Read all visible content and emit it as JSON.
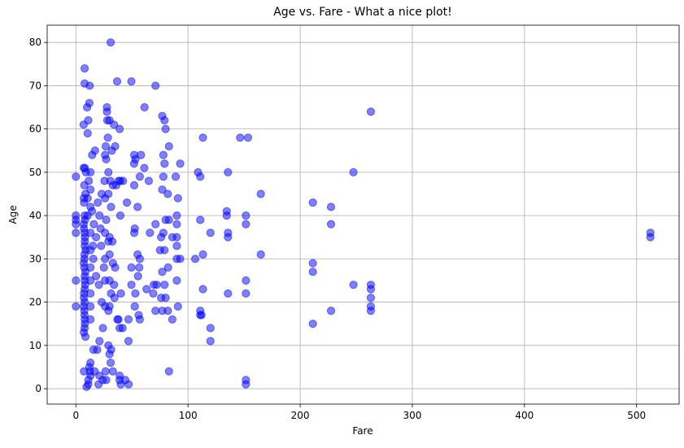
{
  "chart_data": {
    "type": "scatter",
    "title": "Age vs. Fare - What a nice plot!",
    "x_label": "Fare",
    "y_label": "Age",
    "color": "#0000ff",
    "alpha": 0.5,
    "grid": true,
    "xlim": [
      -25.6,
      537.9
    ],
    "ylim": [
      -3.56,
      83.98
    ],
    "xticks": [
      0,
      100,
      200,
      300,
      400,
      500
    ],
    "yticks": [
      0,
      10,
      20,
      30,
      40,
      50,
      60,
      70,
      80
    ],
    "x": [
      0,
      0,
      0,
      0,
      0,
      0,
      0,
      7.25,
      7.9,
      8.05,
      8.46,
      7.75,
      7.23,
      10.5,
      11,
      12,
      10,
      12.3,
      7.8,
      7.8,
      6.9,
      7,
      8,
      9,
      7.5,
      8.5,
      7.1,
      7.3,
      7.9,
      8.1,
      7,
      7.2,
      7.8,
      8,
      7.9,
      8.7,
      7.7,
      7.6,
      7.05,
      7.5,
      7.9,
      8.3,
      7.8,
      7.2,
      7.8,
      7,
      7.5,
      7.7,
      7.9,
      8,
      7.1,
      8.5,
      9.5,
      11,
      11.1,
      13,
      12.5,
      12,
      13,
      10.5,
      10.5,
      11.5,
      13,
      13,
      13,
      13,
      13,
      13,
      13,
      13,
      13,
      13,
      14.5,
      14.4,
      15.2,
      15.5,
      15.7,
      16,
      16.7,
      17,
      18,
      18,
      19,
      19.5,
      20.5,
      20.2,
      21,
      21,
      21,
      22,
      22.5,
      23,
      23,
      24,
      24.1,
      25,
      25.5,
      26,
      26,
      26,
      26,
      26,
      26,
      26.5,
      26.6,
      27,
      27,
      27,
      27.7,
      27.7,
      28,
      28.5,
      29,
      29,
      29,
      29,
      29,
      30,
      30,
      30,
      30,
      30,
      30,
      30.7,
      31,
      31,
      31.3,
      31.3,
      31.4,
      32,
      32.5,
      33,
      33,
      33,
      34,
      34,
      34.4,
      35,
      35,
      36.75,
      36,
      37,
      38,
      38,
      39,
      39.6,
      39.6,
      39,
      39,
      39,
      40,
      40.1,
      41.6,
      42,
      44,
      45.5,
      46.9,
      46.9,
      47,
      49.5,
      49.5,
      49.5,
      51.9,
      52,
      52,
      52,
      52.5,
      53,
      53,
      52.5,
      55,
      55,
      55.4,
      56,
      56.5,
      57,
      57,
      57,
      58,
      61,
      61.2,
      63,
      65,
      66,
      69,
      69.5,
      71,
      71,
      71,
      72,
      75,
      76,
      76,
      77,
      77,
      77,
      77,
      78,
      78,
      78,
      79,
      79,
      79,
      79,
      80,
      80,
      80,
      81.9,
      82,
      82.2,
      83,
      83,
      83,
      86,
      86,
      89,
      90,
      90,
      90,
      90,
      90,
      90,
      91,
      91,
      93,
      93,
      512.3,
      512.3,
      263,
      263,
      263,
      263,
      263,
      263,
      247.5,
      247.5,
      227.5,
      227.5,
      227.5,
      211.3,
      211.3,
      211.3,
      211.3,
      164.9,
      164.9,
      153.5,
      146.5,
      151.6,
      151.6,
      151.6,
      151.6,
      151.6,
      151.6,
      135.6,
      134.5,
      134.5,
      135.6,
      135.6,
      135.6,
      120,
      120,
      120,
      113.3,
      110.9,
      108.9,
      110.9,
      110.9,
      110.9,
      112,
      113.3,
      113.3,
      106.4
    ],
    "values": [
      36,
      38,
      39,
      40,
      49,
      25,
      19,
      22,
      26,
      35,
      27,
      14,
      4,
      59,
      62,
      66,
      65,
      70,
      74,
      70.5,
      61,
      51,
      51,
      50,
      47,
      45,
      44,
      43,
      40,
      39,
      38,
      37,
      36,
      34,
      33,
      32,
      31,
      30,
      29,
      28,
      25,
      24,
      23,
      21,
      20,
      19,
      18,
      17,
      16,
      15,
      13,
      12,
      0.42,
      1,
      2,
      3,
      4,
      5,
      6,
      40,
      44,
      48,
      50,
      46,
      42,
      36,
      32,
      28,
      25,
      22,
      19,
      16,
      54,
      41,
      33,
      30,
      9,
      38,
      4,
      55,
      35,
      26,
      9,
      43,
      24,
      1,
      40,
      11,
      3,
      37,
      33,
      45,
      20,
      2,
      14,
      28,
      48,
      54,
      44,
      36,
      30,
      25,
      19,
      4,
      56,
      53,
      39,
      2,
      65,
      64,
      62,
      58,
      50,
      45,
      34,
      18,
      10,
      62,
      35,
      31,
      25,
      19,
      8,
      48,
      80,
      6,
      42,
      22,
      9,
      55,
      34,
      47,
      29,
      4,
      61,
      24,
      21,
      56,
      28,
      71,
      47,
      16,
      48,
      16,
      60,
      48,
      40,
      14,
      3,
      2,
      1,
      22,
      14,
      48,
      2,
      43,
      16,
      11,
      1,
      71,
      28,
      24,
      52,
      54,
      47,
      36,
      37,
      53,
      22,
      19,
      42,
      31,
      26,
      17,
      28,
      30,
      16,
      49,
      54,
      51,
      65,
      23,
      48,
      36,
      22,
      24,
      18,
      38,
      70,
      24,
      32,
      21,
      35,
      18,
      27,
      46,
      63,
      36,
      49,
      54,
      24,
      32,
      52,
      62,
      21,
      39,
      60,
      45,
      18,
      28,
      4,
      39,
      56,
      16,
      35,
      49,
      25,
      30,
      33,
      35,
      38,
      40,
      19,
      44,
      52,
      30,
      35,
      36,
      64,
      24,
      23,
      21,
      19,
      18,
      50,
      24,
      42,
      38,
      18,
      43,
      29,
      27,
      15,
      45,
      31,
      58,
      58,
      40,
      38,
      25,
      22,
      2,
      1,
      50,
      41,
      40,
      36,
      35,
      22,
      36,
      14,
      11,
      58,
      49,
      50,
      39,
      18,
      17,
      17,
      31,
      23,
      30
    ]
  }
}
